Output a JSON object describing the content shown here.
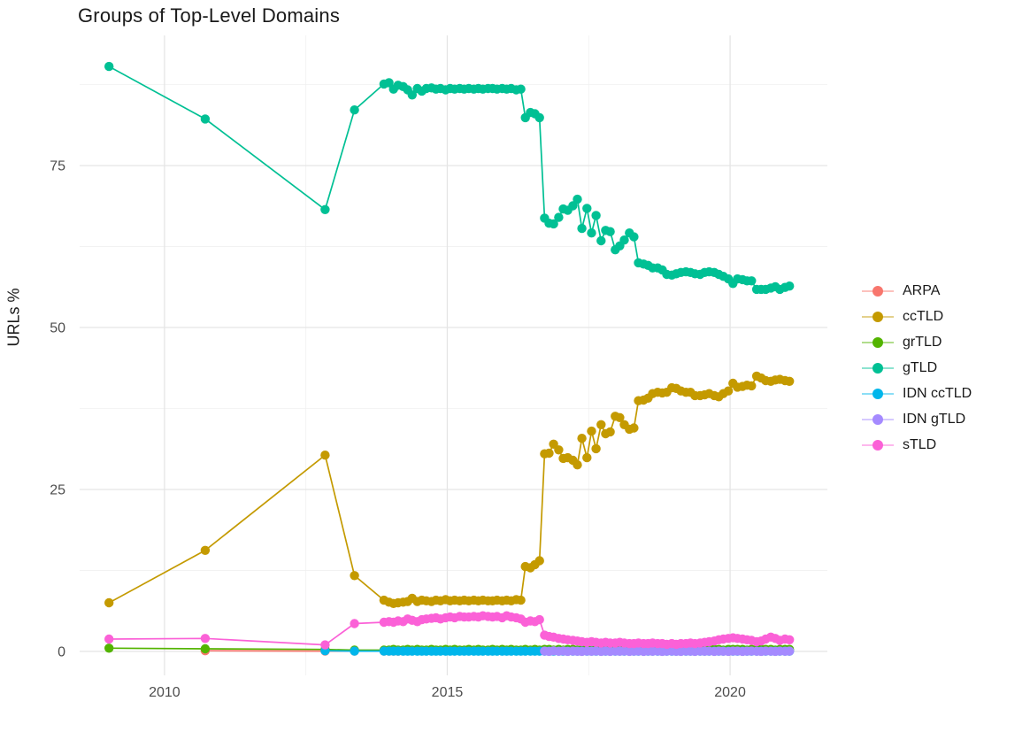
{
  "title": "Groups of Top-Level Domains",
  "y_axis_label": "URLs %",
  "style": {
    "background": "#FFFFFF",
    "grid_major_color": "#E5E5E5",
    "grid_minor_color": "#F0F0F0",
    "tick_label_color": "#4D4D4D",
    "text_color": "#1A1A1A"
  },
  "legend": {
    "position": "right",
    "items": [
      {
        "label": "ARPA",
        "color": "#F8766D"
      },
      {
        "label": "ccTLD",
        "color": "#C49A00"
      },
      {
        "label": "grTLD",
        "color": "#53B400"
      },
      {
        "label": "gTLD",
        "color": "#00C094"
      },
      {
        "label": "IDN ccTLD",
        "color": "#00B6EB"
      },
      {
        "label": "IDN gTLD",
        "color": "#A58AFF"
      },
      {
        "label": "sTLD",
        "color": "#FB61D7"
      }
    ]
  },
  "chart_data": {
    "type": "line",
    "title": "Groups of Top-Level Domains",
    "xlabel": "",
    "ylabel": "URLs %",
    "grid": true,
    "legend_position": "right",
    "x_ticks": {
      "values": [
        2010,
        2015,
        2020
      ],
      "labels": [
        "2010",
        "2015",
        "2020"
      ]
    },
    "x_minor": [
      2012.5,
      2017.5
    ],
    "y_ticks": {
      "values": [
        0,
        25,
        50,
        75
      ],
      "labels": [
        "0",
        "25",
        "50",
        "75"
      ]
    },
    "y_minor": [
      12.5,
      37.5,
      62.5,
      87.5
    ],
    "x_range": [
      2008.5,
      2021.72
    ],
    "y_range": [
      -3.7,
      95.1
    ],
    "x": [
      2009.02,
      2010.72,
      2012.84,
      2013.36,
      2013.88,
      2013.97,
      2014.05,
      2014.13,
      2014.22,
      2014.3,
      2014.38,
      2014.47,
      2014.55,
      2014.63,
      2014.72,
      2014.8,
      2014.88,
      2014.97,
      2015.05,
      2015.13,
      2015.22,
      2015.3,
      2015.38,
      2015.47,
      2015.55,
      2015.63,
      2015.72,
      2015.8,
      2015.88,
      2015.97,
      2016.05,
      2016.13,
      2016.22,
      2016.3,
      2016.38,
      2016.47,
      2016.55,
      2016.63,
      2016.72,
      2016.8,
      2016.88,
      2016.97,
      2017.05,
      2017.13,
      2017.22,
      2017.3,
      2017.38,
      2017.47,
      2017.55,
      2017.63,
      2017.72,
      2017.8,
      2017.88,
      2017.97,
      2018.05,
      2018.13,
      2018.22,
      2018.3,
      2018.38,
      2018.47,
      2018.55,
      2018.63,
      2018.72,
      2018.8,
      2018.88,
      2018.97,
      2019.05,
      2019.13,
      2019.22,
      2019.3,
      2019.38,
      2019.47,
      2019.55,
      2019.63,
      2019.72,
      2019.8,
      2019.88,
      2019.97,
      2020.05,
      2020.13,
      2020.22,
      2020.3,
      2020.38,
      2020.47,
      2020.55,
      2020.63,
      2020.72,
      2020.8,
      2020.88,
      2020.97,
      2021.05
    ],
    "series": [
      {
        "name": "ARPA",
        "color": "#F8766D",
        "values": [
          null,
          0.1,
          0.05,
          0.05,
          0.05,
          0.04,
          0.04,
          0.03,
          null,
          null,
          null,
          null,
          null,
          null,
          null,
          null,
          null,
          null,
          null,
          null,
          null,
          null,
          null,
          null,
          null,
          null,
          null,
          null,
          null,
          null,
          null,
          null,
          null,
          null,
          null,
          null,
          null,
          null,
          null,
          null,
          null,
          null,
          null,
          null,
          null,
          null,
          null,
          null,
          null,
          null,
          null,
          null,
          null,
          null,
          null,
          null,
          null,
          null,
          null,
          null,
          null,
          null,
          null,
          null,
          null,
          null,
          null,
          null,
          null,
          null,
          null,
          null,
          null,
          null,
          null,
          null,
          null,
          null,
          null,
          null,
          null,
          null,
          null,
          null,
          null,
          null,
          null,
          null,
          null,
          null,
          null
        ]
      },
      {
        "name": "ccTLD",
        "color": "#C49A00",
        "values": [
          7.5,
          15.6,
          30.3,
          11.7,
          7.9,
          7.6,
          7.4,
          7.5,
          7.6,
          7.7,
          8.2,
          7.7,
          7.9,
          7.8,
          7.7,
          7.9,
          7.8,
          8.0,
          7.8,
          7.9,
          7.8,
          7.9,
          7.8,
          7.9,
          7.8,
          7.9,
          7.8,
          7.8,
          7.9,
          7.8,
          7.9,
          7.8,
          8.0,
          7.9,
          13.1,
          12.9,
          13.4,
          14.0,
          30.5,
          30.6,
          32.0,
          31.1,
          29.8,
          29.9,
          29.5,
          28.8,
          32.9,
          29.9,
          34.0,
          31.3,
          35.0,
          33.6,
          33.9,
          36.3,
          36.1,
          35.0,
          34.3,
          34.5,
          38.7,
          38.8,
          39.1,
          39.8,
          40.0,
          39.9,
          40.0,
          40.7,
          40.6,
          40.2,
          40.0,
          40.0,
          39.5,
          39.5,
          39.6,
          39.8,
          39.5,
          39.3,
          39.8,
          40.2,
          41.4,
          40.8,
          40.9,
          41.1,
          41.0,
          42.5,
          42.2,
          41.8,
          41.7,
          41.9,
          42.0,
          41.8,
          41.7
        ]
      },
      {
        "name": "grTLD",
        "color": "#53B400",
        "values": [
          0.5,
          0.4,
          0.3,
          0.2,
          0.2,
          0.2,
          0.3,
          0.2,
          0.2,
          0.3,
          0.2,
          0.3,
          0.2,
          0.2,
          0.3,
          0.2,
          0.2,
          0.3,
          0.2,
          0.3,
          0.2,
          0.2,
          0.3,
          0.2,
          0.3,
          0.2,
          0.2,
          0.3,
          0.2,
          0.3,
          0.2,
          0.3,
          0.2,
          0.2,
          0.3,
          0.2,
          0.3,
          0.2,
          0.3,
          0.3,
          0.2,
          0.3,
          0.2,
          0.3,
          0.3,
          0.2,
          0.3,
          0.2,
          0.3,
          0.3,
          0.2,
          0.3,
          0.3,
          0.2,
          0.3,
          0.3,
          0.2,
          0.3,
          0.3,
          0.3,
          0.2,
          0.3,
          0.3,
          0.2,
          0.3,
          0.3,
          0.3,
          0.2,
          0.3,
          0.3,
          0.3,
          0.2,
          0.3,
          0.3,
          0.3,
          0.3,
          0.2,
          0.3,
          0.3,
          0.3,
          0.3,
          0.2,
          0.3,
          0.3,
          0.3,
          0.3,
          0.3,
          0.2,
          0.3,
          0.3,
          0.3
        ]
      },
      {
        "name": "gTLD",
        "color": "#00C094",
        "values": [
          90.3,
          82.2,
          68.2,
          83.6,
          87.6,
          87.8,
          86.8,
          87.4,
          87.2,
          86.7,
          85.9,
          86.9,
          86.5,
          86.9,
          87.0,
          86.8,
          86.9,
          86.7,
          86.9,
          86.8,
          86.9,
          86.8,
          86.9,
          86.8,
          86.9,
          86.8,
          86.9,
          86.9,
          86.8,
          86.9,
          86.8,
          86.9,
          86.7,
          86.8,
          82.4,
          83.2,
          83.0,
          82.4,
          66.9,
          66.1,
          66.0,
          67.0,
          68.3,
          68.1,
          68.8,
          69.8,
          65.3,
          68.4,
          64.6,
          67.3,
          63.4,
          65.0,
          64.8,
          62.0,
          62.6,
          63.5,
          64.6,
          64.0,
          60.0,
          59.8,
          59.6,
          59.2,
          59.2,
          58.9,
          58.2,
          58.1,
          58.3,
          58.5,
          58.6,
          58.5,
          58.3,
          58.2,
          58.5,
          58.6,
          58.5,
          58.2,
          57.9,
          57.5,
          56.8,
          57.5,
          57.4,
          57.2,
          57.2,
          55.9,
          55.9,
          55.9,
          56.1,
          56.3,
          55.9,
          56.2,
          56.4
        ]
      },
      {
        "name": "IDN ccTLD",
        "color": "#00B6EB",
        "values": [
          null,
          null,
          0.1,
          0.05,
          0.05,
          0.05,
          0.04,
          0.04,
          0.03,
          0.03,
          0.03,
          0.03,
          0.03,
          0.03,
          0.03,
          0.03,
          0.03,
          0.03,
          0.03,
          0.03,
          0.03,
          0.03,
          0.03,
          0.03,
          0.03,
          0.03,
          0.03,
          0.03,
          0.03,
          0.03,
          0.03,
          0.03,
          0.03,
          0.03,
          0.03,
          0.03,
          0.03,
          0.03,
          0.03,
          0.03,
          0.03,
          0.03,
          0.03,
          0.03,
          0.03,
          0.03,
          0.03,
          0.03,
          0.03,
          0.03,
          0.03,
          0.03,
          0.03,
          0.03,
          0.03,
          0.03,
          0.03,
          0.03,
          0.03,
          0.03,
          0.03,
          0.03,
          0.03,
          0.03,
          0.03,
          0.03,
          0.03,
          0.03,
          0.03,
          0.03,
          0.03,
          0.03,
          0.03,
          0.03,
          0.03,
          0.03,
          0.03,
          0.03,
          0.03,
          0.03,
          0.03,
          0.03,
          0.03,
          0.03,
          0.03,
          0.03,
          0.03,
          0.03,
          0.03,
          0.03,
          0.03
        ]
      },
      {
        "name": "IDN gTLD",
        "color": "#A58AFF",
        "values": [
          null,
          null,
          null,
          null,
          null,
          null,
          null,
          null,
          null,
          null,
          null,
          null,
          null,
          null,
          null,
          null,
          null,
          null,
          null,
          null,
          null,
          null,
          null,
          null,
          null,
          null,
          null,
          null,
          null,
          null,
          null,
          null,
          null,
          null,
          null,
          null,
          null,
          null,
          0.05,
          0.0,
          0.08,
          0.02,
          0.06,
          0.0,
          0.05,
          0.02,
          0.0,
          0.05,
          0.02,
          0.06,
          0.0,
          0.05,
          0.0,
          0.04,
          0.02,
          0.05,
          0.0,
          0.03,
          0.05,
          0.0,
          0.04,
          0.02,
          0.05,
          0.0,
          0.03,
          0.05,
          0.02,
          0.0,
          0.05,
          0.03,
          0.0,
          0.05,
          0.02,
          0.04,
          0.0,
          0.05,
          0.02,
          0.0,
          0.04,
          0.05,
          0.0,
          0.03,
          0.05,
          0.02,
          0.0,
          0.05,
          0.03,
          0.0,
          0.05,
          0.02,
          0.04
        ]
      },
      {
        "name": "sTLD",
        "color": "#FB61D7",
        "values": [
          1.9,
          2.0,
          1.0,
          4.3,
          4.5,
          4.6,
          4.5,
          4.7,
          4.6,
          5.0,
          4.8,
          4.6,
          4.9,
          5.0,
          5.1,
          5.2,
          5.0,
          5.2,
          5.3,
          5.2,
          5.4,
          5.3,
          5.3,
          5.4,
          5.3,
          5.5,
          5.4,
          5.3,
          5.4,
          5.2,
          5.5,
          5.3,
          5.2,
          5.0,
          4.5,
          4.7,
          4.6,
          4.9,
          2.5,
          2.3,
          2.2,
          2.0,
          1.9,
          1.8,
          1.7,
          1.6,
          1.5,
          1.4,
          1.5,
          1.4,
          1.3,
          1.4,
          1.3,
          1.3,
          1.4,
          1.3,
          1.2,
          1.2,
          1.3,
          1.2,
          1.2,
          1.3,
          1.2,
          1.2,
          1.1,
          1.2,
          1.1,
          1.2,
          1.2,
          1.3,
          1.2,
          1.3,
          1.4,
          1.5,
          1.6,
          1.8,
          1.9,
          2.0,
          2.1,
          2.0,
          1.9,
          1.8,
          1.7,
          1.5,
          1.6,
          1.9,
          2.2,
          2.0,
          1.7,
          1.9,
          1.8
        ]
      }
    ]
  }
}
